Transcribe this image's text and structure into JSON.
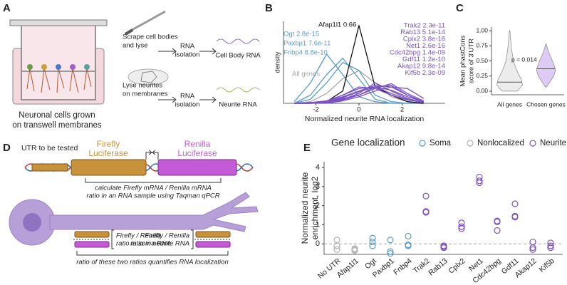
{
  "panel_labels": [
    "A",
    "B",
    "C",
    "D",
    "E"
  ],
  "panel_a": {
    "steps": [
      {
        "action": [
          "Scrape cell bodies",
          "and lyse"
        ],
        "isolation": [
          "RNA",
          "isolation"
        ],
        "product": "Cell Body RNA"
      },
      {
        "action": [
          "Lyse neurites",
          "on membranes"
        ],
        "isolation": [
          "RNA",
          "isolation"
        ],
        "product": "Neurite RNA"
      }
    ],
    "caption": [
      "Neuronal cells grown",
      "on transwell membranes"
    ]
  },
  "panel_d": {
    "utr": "UTR to be tested",
    "firefly": [
      "Firefly",
      "Luciferase"
    ],
    "renilla": [
      "Renilla",
      "Luciferase"
    ],
    "calc": [
      "calculate Firefly mRNA / Renilla mRNA",
      "ratio in an RNA sample using Taqman qPCR"
    ],
    "soma_ratio": [
      "Firefly / Renilla",
      "ratio in soma RNA"
    ],
    "neurite_ratio": [
      "Firefly / Renilla",
      "ratio in neurite RNA"
    ],
    "summary": "ratio of these two ratios quantifies RNA localization"
  },
  "chart_data": [
    {
      "type": "density",
      "ylabel": "density",
      "xlabel": "Normalized neurite RNA localization",
      "xlim": [
        -3.5,
        4
      ],
      "xticks": [
        -2,
        0,
        2
      ],
      "ylim": [
        0,
        1
      ],
      "x": [
        -3,
        -2.25,
        -1.5,
        -0.75,
        0,
        0.75,
        1.5,
        2.25,
        3
      ],
      "series": [
        {
          "name": "All genes",
          "color": "#a8a8a8",
          "values": [
            0,
            0.02,
            0.12,
            0.3,
            0.4,
            0.25,
            0.08,
            0.02,
            0
          ]
        },
        {
          "name": "Ogt 2.8e-15",
          "color": "#5b9bc8",
          "values": [
            0.02,
            0.25,
            0.6,
            0.35,
            0.08,
            0.02,
            0,
            0,
            0
          ]
        },
        {
          "name": "Paxbp1 7.6e-11",
          "color": "#5b9bc8",
          "values": [
            0,
            0.1,
            0.35,
            0.55,
            0.3,
            0.05,
            0,
            0,
            0
          ]
        },
        {
          "name": "Fnbp4 8.8e-10",
          "color": "#5b9bc8",
          "values": [
            0,
            0.05,
            0.25,
            0.5,
            0.4,
            0.1,
            0.02,
            0,
            0
          ]
        },
        {
          "name": "Afap1l1 0.66",
          "color": "#111111",
          "values": [
            0,
            0,
            0.02,
            0.15,
            0.95,
            0.2,
            0.1,
            0.02,
            0
          ]
        },
        {
          "name": "Trak2 2.3e-11",
          "color": "#7b52c4",
          "values": [
            0,
            0,
            0.02,
            0.08,
            0.15,
            0.22,
            0.2,
            0.1,
            0.02
          ]
        },
        {
          "name": "Rab13 5.1e-14",
          "color": "#7b52c4",
          "values": [
            0,
            0,
            0.01,
            0.05,
            0.12,
            0.25,
            0.15,
            0.06,
            0.01
          ]
        },
        {
          "name": "Cplx2 3.8e-18",
          "color": "#7b52c4",
          "values": [
            0,
            0,
            0.01,
            0.06,
            0.1,
            0.18,
            0.24,
            0.12,
            0.03
          ]
        },
        {
          "name": "Net1 2.6e-16",
          "color": "#7b52c4",
          "values": [
            0,
            0,
            0,
            0.03,
            0.08,
            0.15,
            0.2,
            0.18,
            0.06
          ]
        },
        {
          "name": "Cdc42bpg 1.4e-09",
          "color": "#7b52c4",
          "values": [
            0,
            0,
            0.02,
            0.1,
            0.18,
            0.2,
            0.12,
            0.05,
            0.01
          ]
        },
        {
          "name": "Gdf11 1.2e-10",
          "color": "#7b52c4",
          "values": [
            0,
            0,
            0.01,
            0.04,
            0.1,
            0.2,
            0.22,
            0.1,
            0.02
          ]
        },
        {
          "name": "Akap12 9.8e-14",
          "color": "#7b52c4",
          "values": [
            0,
            0.01,
            0.03,
            0.1,
            0.2,
            0.18,
            0.1,
            0.04,
            0.01
          ]
        },
        {
          "name": "Kif5b 2.3e-09",
          "color": "#7b52c4",
          "values": [
            0,
            0,
            0.02,
            0.07,
            0.14,
            0.2,
            0.16,
            0.08,
            0.02
          ]
        }
      ]
    },
    {
      "type": "violin",
      "ylabel": [
        "Mean phastCons",
        "score of 3'UTR"
      ],
      "annotation": "p = 0.014",
      "categories": [
        "All genes",
        "Chosen genes"
      ],
      "ylim": [
        -0.06,
        1.06
      ],
      "yticks": [
        {
          "value": 0,
          "label": "0.00"
        },
        {
          "value": 0.25,
          "label": "0.25"
        },
        {
          "value": 0.5,
          "label": "0.50"
        },
        {
          "value": 0.75,
          "label": "0.75"
        },
        {
          "value": 1,
          "label": "1.00"
        }
      ],
      "violins": [
        {
          "color": "#ececec",
          "y": [
            0,
            0.1,
            0.2,
            0.3,
            0.4,
            0.5,
            0.6,
            0.7,
            0.8,
            0.9,
            1
          ],
          "widths": [
            0.6,
            1,
            0.9,
            0.65,
            0.45,
            0.3,
            0.22,
            0.15,
            0.1,
            0.06,
            0.02
          ],
          "median": 0.15
        },
        {
          "color": "#dccbf4",
          "y": [
            0.07,
            0.15,
            0.25,
            0.35,
            0.45,
            0.55,
            0.65,
            0.78
          ],
          "widths": [
            0.05,
            0.3,
            0.6,
            0.75,
            0.6,
            0.4,
            0.2,
            0.02
          ],
          "median": 0.37
        }
      ]
    },
    {
      "type": "dot",
      "ylabel": [
        "Normalized neurite",
        "enrichment, log2"
      ],
      "legend_title": "Gene localization",
      "categories": [
        "No UTR",
        "Afap1l1",
        "Ogt",
        "Paxbp1",
        "Fnbp4",
        "Trak2",
        "Rab13",
        "Cplx2",
        "Net1",
        "Cdc42bpg",
        "Gdf11",
        "Akap12",
        "Kif5b"
      ],
      "ylim": [
        -0.55,
        4.3
      ],
      "yticks": [
        0,
        1,
        2,
        3,
        4
      ],
      "series": [
        {
          "name": "Soma",
          "color": "#5b9bc8",
          "values": [
            null,
            null,
            [
              0.3,
              0.1,
              -0.1
            ],
            [
              0.2,
              -0.4,
              -0.5
            ],
            [
              0.4,
              -0.05,
              -0.1
            ],
            null,
            null,
            null,
            null,
            null,
            null,
            null,
            null
          ]
        },
        {
          "name": "Nonlocalized",
          "color": "#b0b0b0",
          "values": [
            [
              0.2,
              -0.1,
              -0.3
            ],
            [
              -0.3,
              -0.35,
              -0.25
            ],
            null,
            null,
            null,
            null,
            null,
            null,
            null,
            null,
            null,
            null,
            null
          ]
        },
        {
          "name": "Neurite",
          "color": "#7b52c4",
          "values": [
            null,
            null,
            null,
            null,
            null,
            [
              2.5,
              1.7,
              1.65
            ],
            [
              -0.1,
              -0.15,
              -0.2
            ],
            [
              1.1,
              0.9,
              0.8
            ],
            [
              3.5,
              3.3,
              3.2
            ],
            [
              1.2,
              1.15,
              0.7
            ],
            [
              2.1,
              1.45,
              1.4
            ],
            [
              0.1,
              -0.2,
              -0.3
            ],
            [
              0.05,
              -0.1,
              -0.2
            ]
          ]
        }
      ]
    }
  ]
}
